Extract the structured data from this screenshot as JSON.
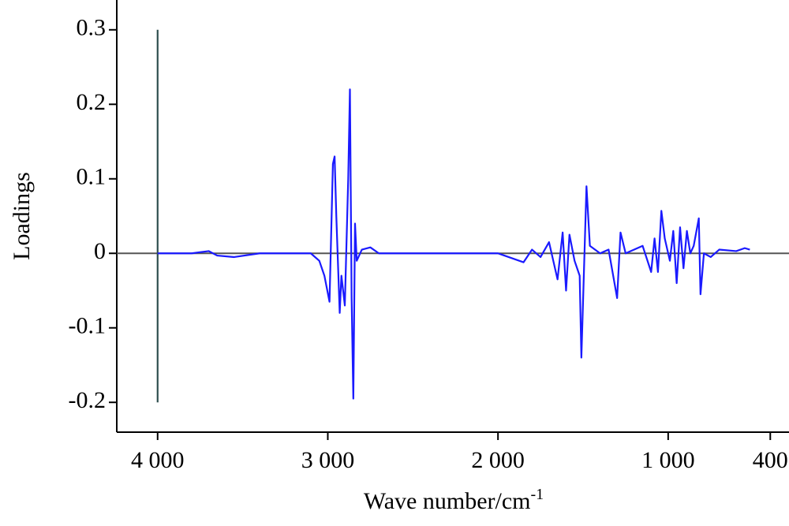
{
  "chart_data": {
    "type": "line",
    "x_label": "Wave number/cm",
    "x_label_superscript": "-1",
    "y_label": "Loadings",
    "xlim": [
      4240,
      290
    ],
    "ylim": [
      -0.24,
      0.34
    ],
    "xticks": [
      {
        "value": 4000,
        "label": "4 000"
      },
      {
        "value": 3000,
        "label": "3 000"
      },
      {
        "value": 2000,
        "label": "2 000"
      },
      {
        "value": 1000,
        "label": "1 000"
      },
      400
    ],
    "yticks": [
      0.3,
      0.2,
      0.1,
      0,
      -0.1,
      -0.2
    ],
    "zero_line": true,
    "zero_line_color": "#555555",
    "grid": false,
    "series": [
      {
        "color": "#2f4f4f",
        "x": [
          4000,
          4000
        ],
        "values": [
          0.3,
          -0.2
        ]
      },
      {
        "color": "#1a1aff",
        "x": [
          4000,
          3800,
          3700,
          3650,
          3550,
          3400,
          3100,
          3050,
          3020,
          2990,
          2970,
          2960,
          2950,
          2930,
          2920,
          2900,
          2880,
          2870,
          2860,
          2850,
          2840,
          2830,
          2800,
          2750,
          2700,
          2500,
          2000,
          1850,
          1800,
          1750,
          1700,
          1650,
          1620,
          1600,
          1580,
          1550,
          1520,
          1510,
          1480,
          1460,
          1400,
          1350,
          1300,
          1280,
          1250,
          1200,
          1150,
          1100,
          1080,
          1060,
          1040,
          1020,
          990,
          970,
          950,
          930,
          910,
          890,
          870,
          850,
          820,
          810,
          790,
          750,
          700,
          600,
          550,
          520
        ],
        "values": [
          0,
          0,
          0.003,
          -0.003,
          -0.005,
          0,
          0,
          -0.01,
          -0.03,
          -0.065,
          0.12,
          0.13,
          0.05,
          -0.08,
          -0.03,
          -0.07,
          0.1,
          0.22,
          -0.06,
          -0.195,
          0.04,
          -0.01,
          0.005,
          0.008,
          0,
          0,
          0,
          -0.012,
          0.005,
          -0.005,
          0.015,
          -0.035,
          0.028,
          -0.05,
          0.025,
          -0.01,
          -0.03,
          -0.14,
          0.09,
          0.01,
          0,
          0.005,
          -0.06,
          0.028,
          0,
          0.005,
          0.01,
          -0.025,
          0.02,
          -0.025,
          0.057,
          0.02,
          -0.01,
          0.03,
          -0.04,
          0.035,
          -0.02,
          0.03,
          0,
          0.01,
          0.047,
          -0.055,
          0,
          -0.005,
          0.005,
          0.003,
          0.007,
          0.005
        ]
      }
    ]
  }
}
